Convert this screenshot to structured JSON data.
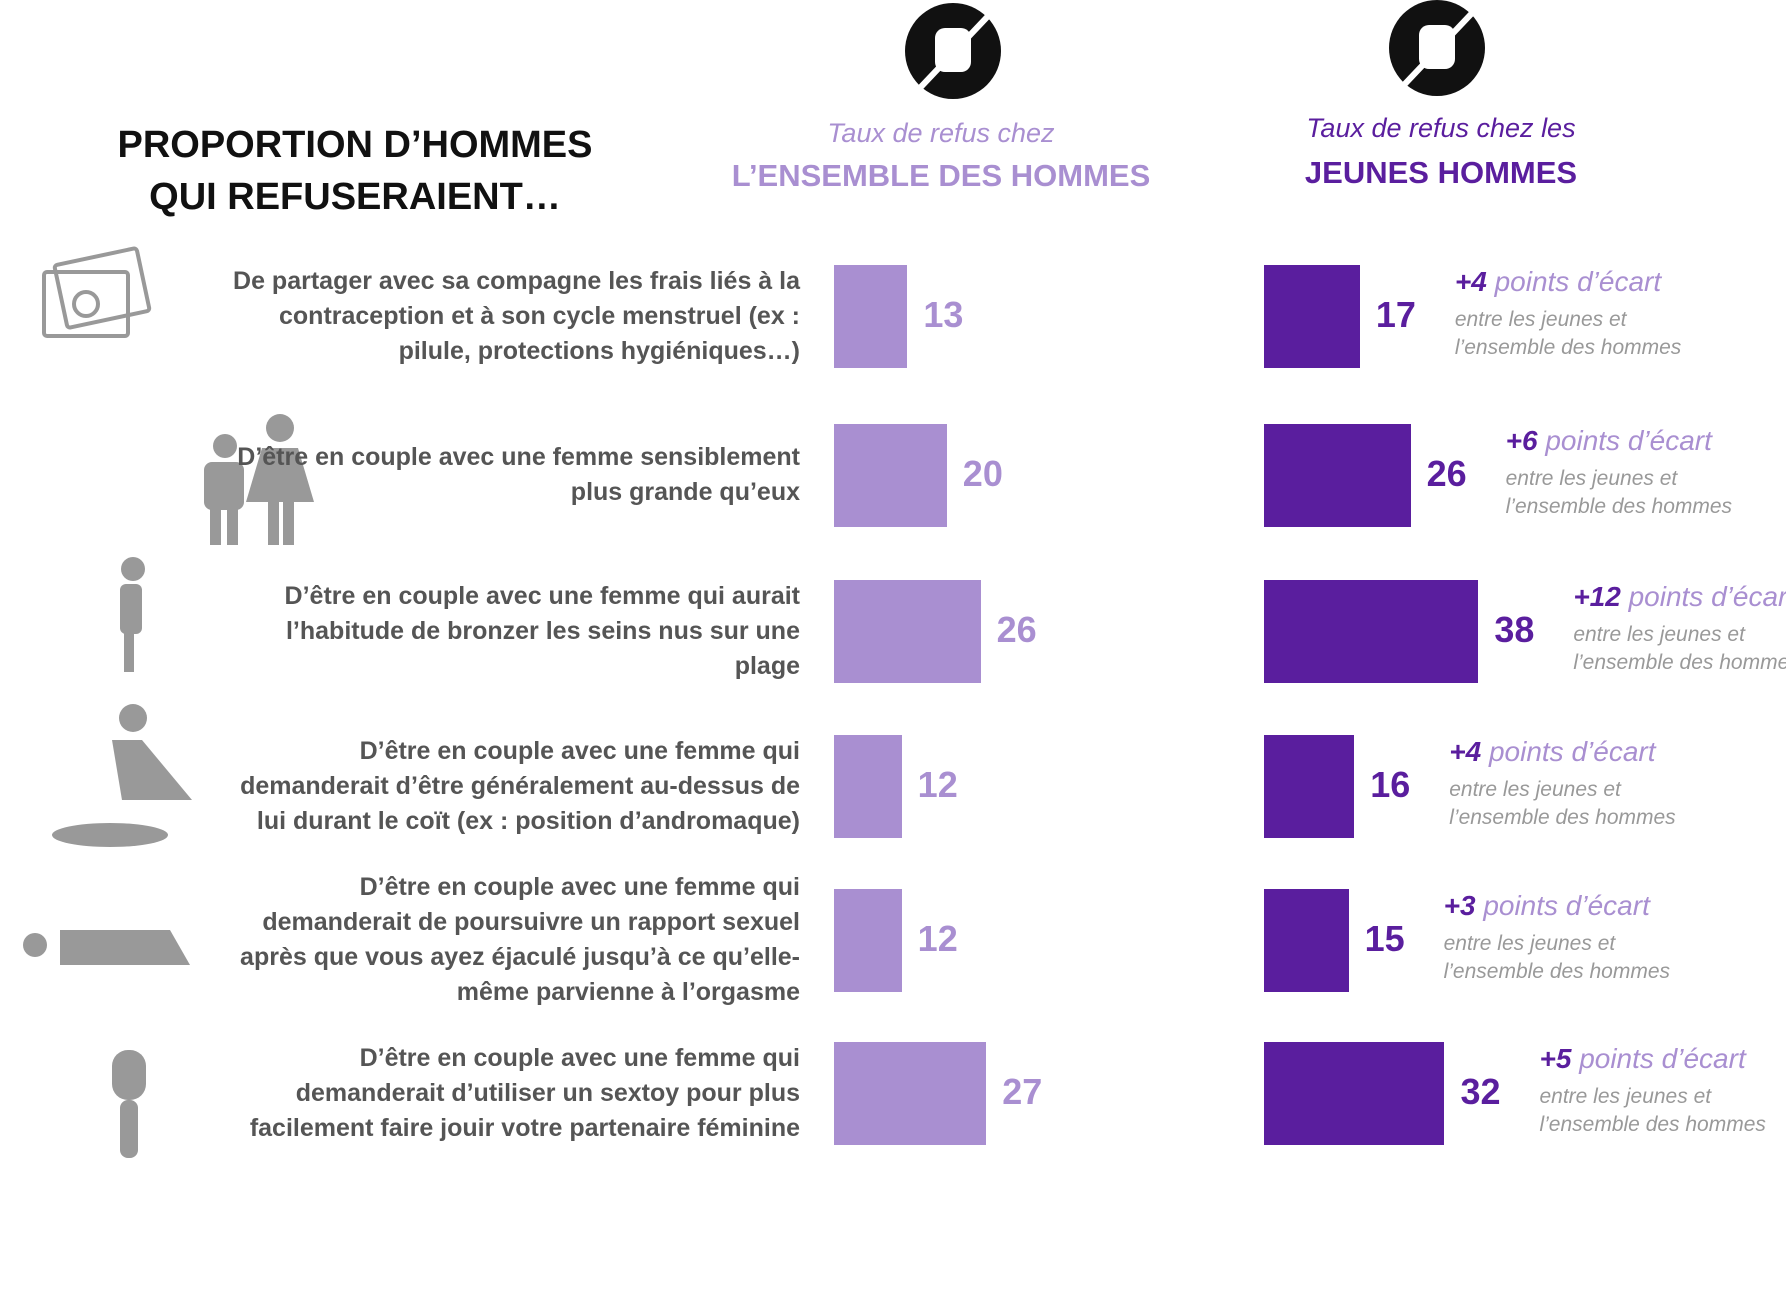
{
  "chart_data": {
    "type": "bar",
    "title_lines": [
      "PROPORTION D’HOMMES",
      "QUI REFUSERAIENT…"
    ],
    "categories": [
      "De partager avec sa compagne les frais liés à la contraception et à son cycle menstruel (ex : pilule, protections hygiéniques…)",
      "D’être en couple avec une femme sensiblement plus grande qu’eux",
      "D’être en couple avec une femme qui aurait l’habitude de bronzer les seins nus sur une plage",
      "D’être en couple avec une femme qui demanderait d’être généralement au-dessus de lui durant le coït (ex : position d’andromaque)",
      "D’être en couple avec une femme qui demanderait de poursuivre un rapport sexuel après que vous ayez éjaculé jusqu’à ce qu’elle-même parvienne à l’orgasme",
      "D’être en couple avec une femme qui demanderait  d’utiliser un sextoy pour plus facilement faire jouir votre partenaire féminine"
    ],
    "series": [
      {
        "caption": "Taux de refus chez",
        "name": "L’ENSEMBLE DES HOMMES",
        "color": "#a98fd1",
        "values": [
          13,
          20,
          26,
          12,
          12,
          27
        ]
      },
      {
        "caption": "Taux de refus chez les",
        "name": "JEUNES HOMMES",
        "color": "#5a1e9e",
        "values": [
          17,
          26,
          38,
          16,
          15,
          32
        ]
      }
    ],
    "gap_labels": [
      "+4",
      "+6",
      "+12",
      "+4",
      "+3",
      "+5"
    ],
    "gap_unit": "points d’écart",
    "gap_note_lines": [
      "entre les jeunes et",
      "l’ensemble des hommes"
    ]
  }
}
